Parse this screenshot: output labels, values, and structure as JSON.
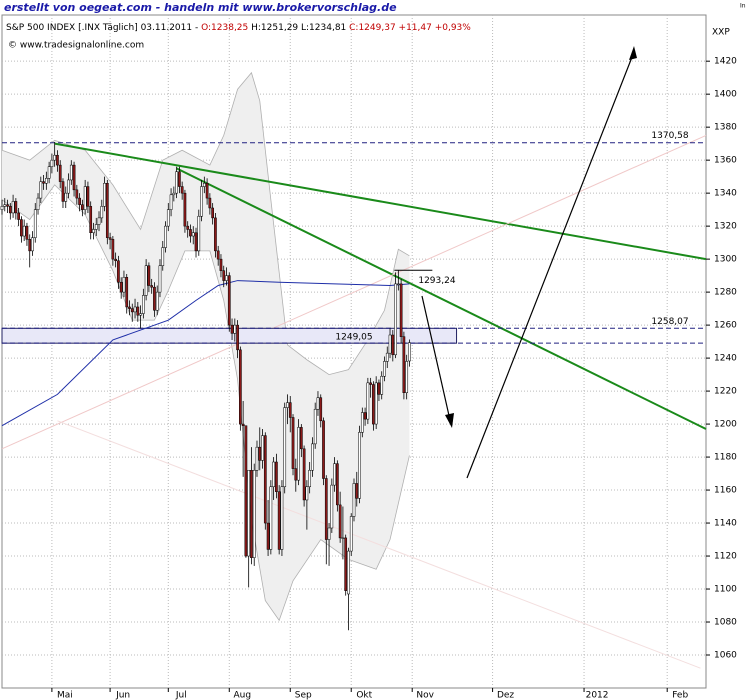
{
  "header": {
    "credit": "erstellt von oegeat.com - handeln mit www.brokervorschlag.de",
    "instrument": "S&P 500 INDEX [.INX Täglich] 03.11.2011 - ",
    "open": "O:1238,25",
    "hl": " H:1251,29 L:1234,81 ",
    "close": "C:1249,37 +11,47 +0,93%",
    "source": "© www.tradesignalonline.com",
    "unit": "XXP",
    "corner": "In"
  },
  "chart_data": {
    "type": "candlestick",
    "up_color": "#ffffff",
    "down_color": "#8b1a1a",
    "grid": true,
    "xlim": [
      0,
      254
    ],
    "ylim": [
      1040,
      1448
    ],
    "xticks": [
      {
        "value": 18,
        "label": "Mai"
      },
      {
        "value": 39,
        "label": "Jun"
      },
      {
        "value": 60,
        "label": "Jul"
      },
      {
        "value": 82,
        "label": "Aug"
      },
      {
        "value": 104,
        "label": "Sep"
      },
      {
        "value": 126,
        "label": "Okt"
      },
      {
        "value": 148,
        "label": "Nov"
      },
      {
        "value": 177,
        "label": "Dez"
      },
      {
        "value": 210,
        "label": "2012"
      },
      {
        "value": 240,
        "label": "Feb"
      }
    ],
    "yticks": [
      1060,
      1080,
      1100,
      1120,
      1140,
      1160,
      1180,
      1200,
      1220,
      1240,
      1260,
      1280,
      1300,
      1320,
      1340,
      1360,
      1380,
      1400,
      1420
    ],
    "candles": [
      [
        1330,
        1336,
        1327,
        1332
      ],
      [
        1332,
        1337,
        1329,
        1333
      ],
      [
        1333,
        1336,
        1328,
        1332
      ],
      [
        1332,
        1334,
        1324,
        1328
      ],
      [
        1328,
        1339,
        1325,
        1335
      ],
      [
        1335,
        1337,
        1324,
        1328
      ],
      [
        1328,
        1331,
        1320,
        1324
      ],
      [
        1324,
        1326,
        1310,
        1314
      ],
      [
        1314,
        1324,
        1311,
        1320
      ],
      [
        1320,
        1322,
        1308,
        1312
      ],
      [
        1312,
        1315,
        1295,
        1305
      ],
      [
        1305,
        1317,
        1302,
        1313
      ],
      [
        1313,
        1334,
        1310,
        1330
      ],
      [
        1330,
        1340,
        1327,
        1337
      ],
      [
        1337,
        1350,
        1334,
        1347
      ],
      [
        1347,
        1351,
        1342,
        1346
      ],
      [
        1346,
        1353,
        1342,
        1349
      ],
      [
        1349,
        1359,
        1346,
        1356
      ],
      [
        1356,
        1364,
        1352,
        1360
      ],
      [
        1360,
        1371,
        1356,
        1363
      ],
      [
        1363,
        1366,
        1353,
        1357
      ],
      [
        1357,
        1360,
        1343,
        1347
      ],
      [
        1347,
        1349,
        1331,
        1335
      ],
      [
        1335,
        1344,
        1331,
        1340
      ],
      [
        1340,
        1352,
        1337,
        1348
      ],
      [
        1348,
        1360,
        1345,
        1357
      ],
      [
        1357,
        1359,
        1338,
        1342
      ],
      [
        1342,
        1345,
        1333,
        1337
      ],
      [
        1337,
        1340,
        1329,
        1333
      ],
      [
        1333,
        1336,
        1326,
        1330
      ],
      [
        1330,
        1348,
        1327,
        1344
      ],
      [
        1344,
        1347,
        1328,
        1332
      ],
      [
        1332,
        1335,
        1312,
        1316
      ],
      [
        1316,
        1322,
        1312,
        1318
      ],
      [
        1318,
        1325,
        1314,
        1321
      ],
      [
        1321,
        1329,
        1317,
        1325
      ],
      [
        1325,
        1336,
        1322,
        1332
      ],
      [
        1332,
        1350,
        1329,
        1346
      ],
      [
        1346,
        1348,
        1309,
        1313
      ],
      [
        1313,
        1316,
        1306,
        1312
      ],
      [
        1312,
        1314,
        1296,
        1300
      ],
      [
        1300,
        1304,
        1295,
        1299
      ],
      [
        1299,
        1302,
        1282,
        1286
      ],
      [
        1286,
        1289,
        1276,
        1280
      ],
      [
        1280,
        1293,
        1277,
        1289
      ],
      [
        1289,
        1291,
        1267,
        1271
      ],
      [
        1271,
        1275,
        1266,
        1270
      ],
      [
        1270,
        1273,
        1262,
        1268
      ],
      [
        1268,
        1276,
        1264,
        1271
      ],
      [
        1271,
        1274,
        1262,
        1266
      ],
      [
        1266,
        1272,
        1258,
        1267
      ],
      [
        1267,
        1282,
        1264,
        1278
      ],
      [
        1278,
        1300,
        1275,
        1296
      ],
      [
        1296,
        1298,
        1280,
        1284
      ],
      [
        1284,
        1288,
        1279,
        1283
      ],
      [
        1283,
        1286,
        1265,
        1269
      ],
      [
        1269,
        1284,
        1266,
        1280
      ],
      [
        1280,
        1300,
        1277,
        1296
      ],
      [
        1296,
        1311,
        1293,
        1307
      ],
      [
        1307,
        1323,
        1304,
        1320
      ],
      [
        1320,
        1334,
        1317,
        1330
      ],
      [
        1330,
        1343,
        1326,
        1339
      ],
      [
        1339,
        1344,
        1335,
        1340
      ],
      [
        1340,
        1356,
        1337,
        1353
      ],
      [
        1353,
        1356,
        1340,
        1344
      ],
      [
        1344,
        1347,
        1336,
        1340
      ],
      [
        1340,
        1342,
        1316,
        1320
      ],
      [
        1320,
        1323,
        1313,
        1318
      ],
      [
        1318,
        1321,
        1310,
        1314
      ],
      [
        1314,
        1320,
        1309,
        1316
      ],
      [
        1316,
        1319,
        1301,
        1305
      ],
      [
        1305,
        1330,
        1302,
        1326
      ],
      [
        1326,
        1348,
        1323,
        1344
      ],
      [
        1344,
        1350,
        1340,
        1346
      ],
      [
        1346,
        1349,
        1333,
        1337
      ],
      [
        1337,
        1340,
        1327,
        1331
      ],
      [
        1331,
        1334,
        1321,
        1325
      ],
      [
        1325,
        1328,
        1301,
        1305
      ],
      [
        1305,
        1308,
        1296,
        1300
      ],
      [
        1300,
        1303,
        1289,
        1293
      ],
      [
        1293,
        1296,
        1283,
        1287
      ],
      [
        1287,
        1295,
        1284,
        1290
      ],
      [
        1290,
        1292,
        1256,
        1260
      ],
      [
        1260,
        1264,
        1251,
        1255
      ],
      [
        1255,
        1264,
        1250,
        1260
      ],
      [
        1260,
        1263,
        1240,
        1245
      ],
      [
        1245,
        1247,
        1196,
        1200
      ],
      [
        1200,
        1214,
        1168,
        1199
      ],
      [
        1199,
        1199,
        1119,
        1120
      ],
      [
        1120,
        1172,
        1101,
        1172
      ],
      [
        1172,
        1186,
        1115,
        1119
      ],
      [
        1119,
        1176,
        1114,
        1172
      ],
      [
        1172,
        1190,
        1168,
        1186
      ],
      [
        1186,
        1198,
        1172,
        1178
      ],
      [
        1178,
        1197,
        1173,
        1193
      ],
      [
        1193,
        1195,
        1136,
        1140
      ],
      [
        1140,
        1154,
        1120,
        1124
      ],
      [
        1124,
        1166,
        1121,
        1162
      ],
      [
        1162,
        1180,
        1154,
        1177
      ],
      [
        1177,
        1182,
        1155,
        1159
      ],
      [
        1159,
        1163,
        1121,
        1124
      ],
      [
        1124,
        1166,
        1120,
        1162
      ],
      [
        1162,
        1213,
        1158,
        1210
      ],
      [
        1210,
        1218,
        1200,
        1213
      ],
      [
        1213,
        1217,
        1195,
        1204
      ],
      [
        1204,
        1206,
        1169,
        1173
      ],
      [
        1173,
        1179,
        1159,
        1166
      ],
      [
        1166,
        1203,
        1163,
        1198
      ],
      [
        1198,
        1200,
        1180,
        1185
      ],
      [
        1185,
        1187,
        1150,
        1154
      ],
      [
        1154,
        1166,
        1136,
        1162
      ],
      [
        1162,
        1177,
        1158,
        1172
      ],
      [
        1172,
        1192,
        1168,
        1188
      ],
      [
        1188,
        1213,
        1185,
        1209
      ],
      [
        1209,
        1220,
        1205,
        1216
      ],
      [
        1216,
        1218,
        1198,
        1202
      ],
      [
        1202,
        1204,
        1163,
        1167
      ],
      [
        1167,
        1169,
        1115,
        1130
      ],
      [
        1130,
        1140,
        1114,
        1137
      ],
      [
        1137,
        1167,
        1134,
        1163
      ],
      [
        1163,
        1180,
        1159,
        1176
      ],
      [
        1176,
        1178,
        1147,
        1151
      ],
      [
        1151,
        1159,
        1128,
        1131
      ],
      [
        1131,
        1150,
        1118,
        1131
      ],
      [
        1131,
        1133,
        1096,
        1099
      ],
      [
        1097,
        1125,
        1075,
        1123
      ],
      [
        1123,
        1146,
        1120,
        1144
      ],
      [
        1144,
        1167,
        1141,
        1164
      ],
      [
        1164,
        1171,
        1150,
        1155
      ],
      [
        1155,
        1199,
        1152,
        1195
      ],
      [
        1195,
        1210,
        1192,
        1207
      ],
      [
        1207,
        1210,
        1199,
        1203
      ],
      [
        1203,
        1228,
        1200,
        1225
      ],
      [
        1225,
        1228,
        1216,
        1224
      ],
      [
        1224,
        1226,
        1196,
        1200
      ],
      [
        1200,
        1229,
        1197,
        1225
      ],
      [
        1225,
        1227,
        1214,
        1218
      ],
      [
        1218,
        1232,
        1215,
        1229
      ],
      [
        1229,
        1241,
        1226,
        1238
      ],
      [
        1238,
        1247,
        1234,
        1243
      ],
      [
        1243,
        1258,
        1240,
        1254
      ],
      [
        1254,
        1257,
        1238,
        1242
      ],
      [
        1242,
        1292,
        1240,
        1285
      ],
      [
        1285,
        1293.24,
        1281,
        1285
      ],
      [
        1285,
        1288,
        1249,
        1253
      ],
      [
        1253,
        1256,
        1215,
        1219
      ],
      [
        1219,
        1242,
        1215,
        1238
      ],
      [
        1238.25,
        1251.29,
        1234.81,
        1249.37
      ]
    ],
    "bands": {
      "color": "#b0b0b0",
      "upper": {
        "x": [
          0,
          10,
          19,
          30,
          40,
          50,
          58,
          65,
          75,
          80,
          85,
          90,
          93,
          97,
          103,
          110,
          118,
          125,
          132,
          138,
          143,
          147
        ],
        "values": [
          1366,
          1360,
          1372,
          1366,
          1345,
          1318,
          1360,
          1366,
          1357,
          1375,
          1403,
          1413,
          1396,
          1336,
          1248,
          1239,
          1230,
          1233,
          1251,
          1269,
          1306,
          1302
        ]
      },
      "lower": {
        "x": [
          0,
          10,
          19,
          30,
          40,
          47,
          55,
          60,
          66,
          75,
          80,
          85,
          90,
          95,
          100,
          105,
          115,
          125,
          135,
          140,
          147
        ],
        "values": [
          1336,
          1324,
          1345,
          1327,
          1293,
          1263,
          1263,
          1281,
          1305,
          1305,
          1275,
          1227,
          1142,
          1093,
          1081,
          1105,
          1130,
          1118,
          1112,
          1130,
          1181
        ]
      }
    },
    "average": {
      "color": "#1f2fa8",
      "x": [
        0,
        20,
        40,
        60,
        70,
        78,
        85,
        100,
        120,
        140,
        147
      ],
      "values": [
        1199,
        1218,
        1251,
        1263,
        1275,
        1284,
        1287,
        1286,
        1285,
        1284,
        1285
      ]
    },
    "trendlines": [
      {
        "color": "#1a8a1a",
        "x": [
          19,
          254
        ],
        "values": [
          1370,
          1300
        ]
      },
      {
        "color": "#1a8a1a",
        "x": [
          63,
          254
        ],
        "values": [
          1355,
          1197
        ]
      },
      {
        "color": "#f0c8c8",
        "x": [
          0,
          254
        ],
        "values": [
          1185,
          1375
        ]
      },
      {
        "color": "#f3dede",
        "x": [
          20,
          252
        ],
        "values": [
          1202,
          1052
        ]
      }
    ],
    "levels": [
      {
        "value": 1370.58,
        "label": "1370,58"
      },
      {
        "value": 1258.07,
        "label": "1258,07"
      },
      {
        "value": 1249.05,
        "label": "1249,05"
      }
    ],
    "peak": {
      "x": 143,
      "value": 1293.24,
      "label": "1293,24"
    }
  }
}
